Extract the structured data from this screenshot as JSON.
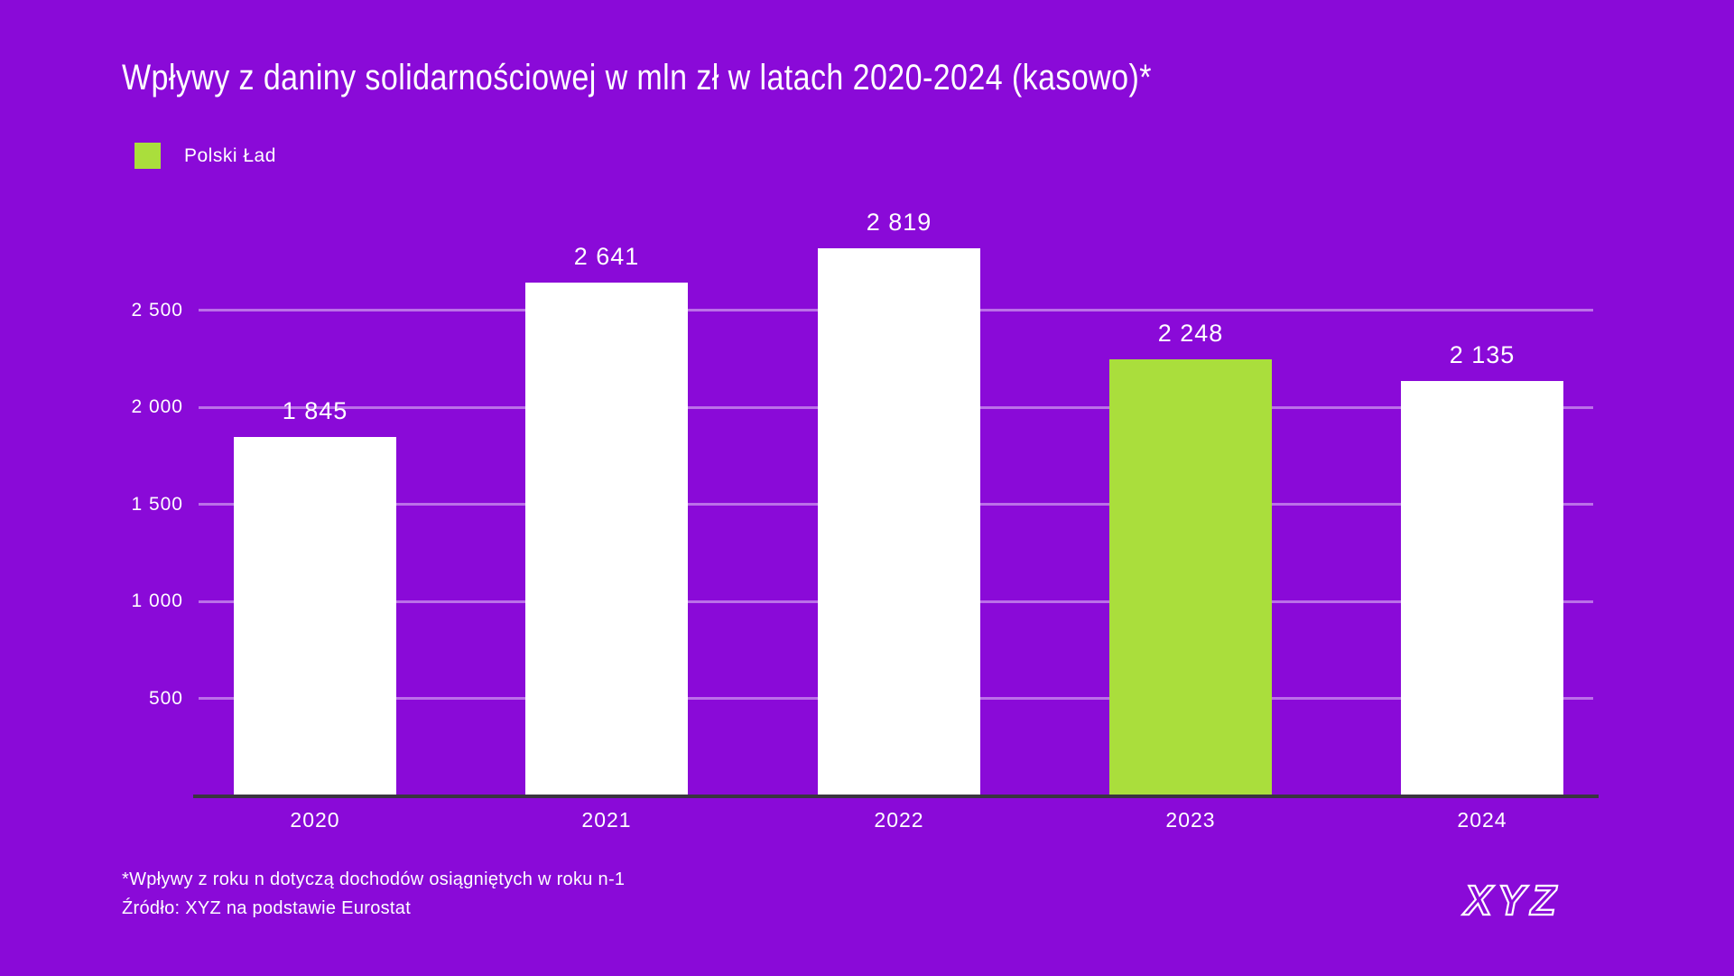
{
  "title": "Wpływy z daniny solidarnościowej w mln zł w latach 2020-2024 (kasowo)*",
  "legend": {
    "label": "Polski Ład",
    "swatch_color": "#aade3c"
  },
  "chart_data": {
    "type": "bar",
    "title": "Wpływy z daniny solidarnościowej w mln zł w latach 2020-2024 (kasowo)*",
    "categories": [
      "2020",
      "2021",
      "2022",
      "2023",
      "2024"
    ],
    "values": [
      1845,
      2641,
      2819,
      2248,
      2135
    ],
    "value_labels": [
      "1 845",
      "2 641",
      "2 819",
      "2 248",
      "2 135"
    ],
    "bar_colors": [
      "#ffffff",
      "#ffffff",
      "#ffffff",
      "#aade3c",
      "#ffffff"
    ],
    "highlighted_category": "2023",
    "highlight_series_name": "Polski Ład",
    "yticks": [
      500,
      1000,
      1500,
      2000,
      2500
    ],
    "ytick_labels": [
      "500",
      "1 000",
      "1 500",
      "2 000",
      "2 500"
    ],
    "ylim": [
      0,
      3000
    ],
    "grid": true,
    "legend_position": "top-left",
    "xlabel": "",
    "ylabel": ""
  },
  "footnotes": [
    "*Wpływy z roku n dotyczą dochodów osiągniętych w roku n-1",
    "Źródło: XYZ na podstawie Eurostat"
  ],
  "logo_text": "XYZ",
  "colors": {
    "background": "#8a0ad8",
    "bar_default": "#ffffff",
    "bar_highlight": "#aade3c",
    "gridline": "rgba(255,255,255,0.42)",
    "axis_line": "#3a3540",
    "text": "#ffffff"
  }
}
